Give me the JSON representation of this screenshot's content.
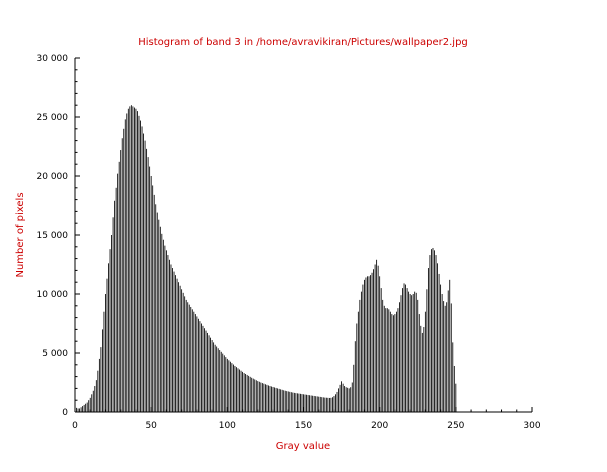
{
  "colors": {
    "background": "#ffffff",
    "bars": "#000000",
    "axes": "#000000",
    "title_text": "#cc0000",
    "axis_label_text": "#cc0000",
    "tick_text": "#000000"
  },
  "chart_data": {
    "type": "bar",
    "title": "Histogram of band 3 in /home/avravikiran/Pictures/wallpaper2.jpg",
    "xlabel": "Gray value",
    "ylabel": "Number of pixels",
    "xlim": [
      0,
      300
    ],
    "ylim": [
      0,
      30000
    ],
    "x_ticks": [
      0,
      50,
      100,
      150,
      200,
      250,
      300
    ],
    "x_tick_labels": [
      "0",
      "50",
      "100",
      "150",
      "200",
      "250",
      "300"
    ],
    "y_ticks": [
      0,
      5000,
      10000,
      15000,
      20000,
      25000,
      30000
    ],
    "y_tick_labels": [
      "0",
      "5 000",
      "10 000",
      "15 000",
      "20 000",
      "25 000",
      "30 000"
    ],
    "grid": false,
    "legend": "none",
    "x_start": 0,
    "x_step": 1,
    "values": [
      1600,
      350,
      300,
      300,
      400,
      500,
      600,
      700,
      800,
      1000,
      1200,
      1500,
      1800,
      2200,
      2700,
      3500,
      4500,
      5500,
      7000,
      8500,
      10000,
      11300,
      12600,
      13800,
      15000,
      16500,
      17900,
      19000,
      20200,
      21200,
      22200,
      23200,
      24000,
      24800,
      25300,
      25700,
      25900,
      26000,
      25900,
      25800,
      25700,
      25500,
      25100,
      24700,
      24200,
      23600,
      23000,
      22300,
      21600,
      20800,
      20000,
      19200,
      18400,
      17600,
      16900,
      16300,
      15700,
      15100,
      14600,
      14100,
      13700,
      13300,
      12900,
      12500,
      12200,
      11900,
      11600,
      11300,
      11000,
      10700,
      10400,
      10100,
      9800,
      9500,
      9300,
      9100,
      8900,
      8700,
      8500,
      8300,
      8100,
      7900,
      7700,
      7500,
      7300,
      7100,
      6900,
      6700,
      6500,
      6300,
      6100,
      5900,
      5700,
      5550,
      5400,
      5250,
      5100,
      4950,
      4800,
      4650,
      4500,
      4380,
      4260,
      4140,
      4020,
      3900,
      3800,
      3700,
      3600,
      3500,
      3400,
      3300,
      3220,
      3140,
      3060,
      2980,
      2900,
      2830,
      2760,
      2690,
      2620,
      2560,
      2500,
      2450,
      2400,
      2350,
      2300,
      2250,
      2200,
      2160,
      2120,
      2080,
      2040,
      2000,
      1960,
      1920,
      1880,
      1840,
      1800,
      1770,
      1740,
      1710,
      1680,
      1650,
      1620,
      1600,
      1580,
      1560,
      1540,
      1520,
      1500,
      1480,
      1460,
      1440,
      1420,
      1400,
      1380,
      1360,
      1340,
      1320,
      1300,
      1280,
      1260,
      1240,
      1220,
      1210,
      1200,
      1190,
      1200,
      1250,
      1350,
      1500,
      1700,
      2000,
      2300,
      2600,
      2400,
      2200,
      2100,
      2050,
      2000,
      2100,
      2500,
      4000,
      6000,
      7500,
      8500,
      9500,
      10200,
      10800,
      11200,
      11400,
      11500,
      11500,
      11600,
      11800,
      12100,
      12500,
      12900,
      12400,
      11500,
      10500,
      9500,
      9000,
      8800,
      8800,
      8700,
      8500,
      8300,
      8200,
      8300,
      8500,
      8800,
      9300,
      9900,
      10500,
      10900,
      10800,
      10500,
      10200,
      10000,
      9900,
      10000,
      10200,
      10100,
      9500,
      8300,
      7300,
      6700,
      7200,
      8500,
      10400,
      12200,
      13300,
      13800,
      13900,
      13700,
      13300,
      12600,
      11700,
      10800,
      10000,
      9400,
      9000,
      9300,
      10300,
      11200,
      9200,
      5900,
      3900,
      2400
    ]
  }
}
